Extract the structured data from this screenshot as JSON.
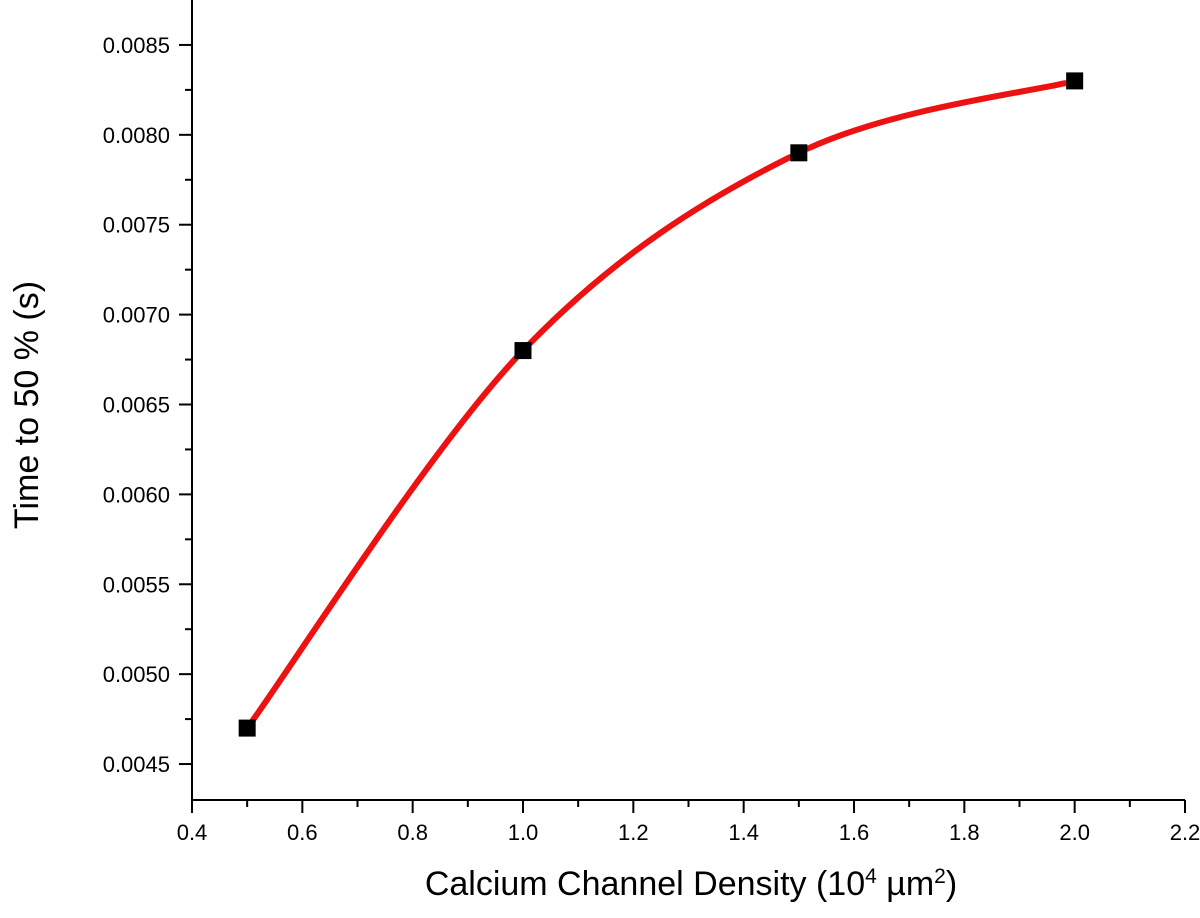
{
  "chart_data": {
    "type": "line",
    "xlabel": "Calcium Channel Density (10",
    "xlabel_sup1": "4",
    "xlabel_mid": " µm",
    "xlabel_sup2": "2",
    "xlabel_end": ")",
    "ylabel": "Time to 50 % (s)",
    "xlim": [
      0.4,
      2.2
    ],
    "ylim": [
      0.0043,
      0.00875
    ],
    "x_ticks": [
      0.4,
      0.6,
      0.8,
      1.0,
      1.2,
      1.4,
      1.6,
      1.8,
      2.0,
      2.2
    ],
    "x_tick_labels": [
      "0.4",
      "0.6",
      "0.8",
      "1.0",
      "1.2",
      "1.4",
      "1.6",
      "1.8",
      "2.0",
      "2.2"
    ],
    "y_ticks": [
      0.0045,
      0.005,
      0.0055,
      0.006,
      0.0065,
      0.007,
      0.0075,
      0.008,
      0.0085
    ],
    "y_tick_labels": [
      "0.0045",
      "0.0050",
      "0.0055",
      "0.0060",
      "0.0065",
      "0.0070",
      "0.0075",
      "0.0080",
      "0.0085"
    ],
    "grid": false,
    "series": [
      {
        "points": [
          {
            "x": 0.5,
            "y": 0.0047
          },
          {
            "x": 1.0,
            "y": 0.0068
          },
          {
            "x": 1.5,
            "y": 0.0079
          },
          {
            "x": 2.0,
            "y": 0.0083
          }
        ],
        "marker": "square",
        "marker_color": "#000000",
        "line_color": "#ee1111",
        "line_style": "smooth spline"
      }
    ]
  }
}
